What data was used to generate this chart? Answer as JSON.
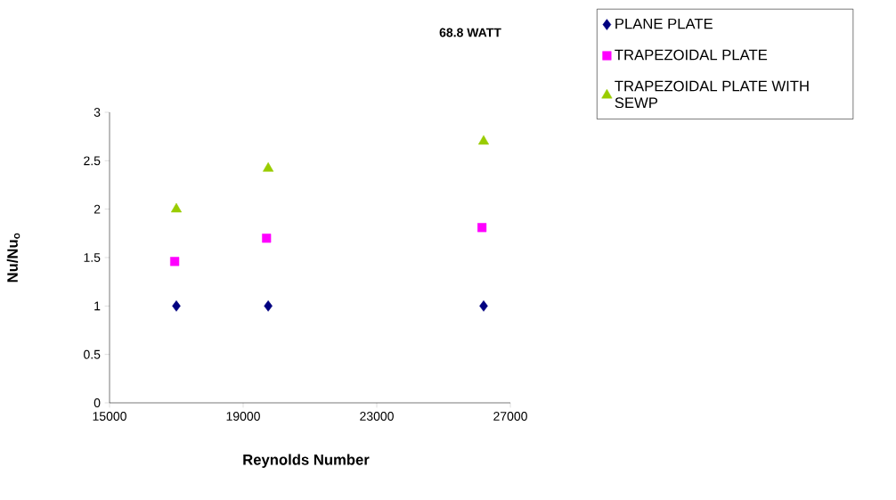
{
  "chart_data": {
    "type": "scatter",
    "title": "68.8 WATT",
    "xlabel": "Reynolds Number",
    "ylabel": "Nu/Nu$_{o}$",
    "xlim": [
      15000,
      27000
    ],
    "xticks": [
      15000,
      19000,
      23000,
      27000
    ],
    "ylim": [
      0,
      3
    ],
    "yticks": [
      0,
      0.5,
      1,
      1.5,
      2,
      2.5,
      3
    ],
    "legend": "top right",
    "series": [
      {
        "name": "PLANE PLATE",
        "color": "#000080",
        "marker": "diamond",
        "x": [
          17000,
          19750,
          26200
        ],
        "values": [
          1.0,
          1.0,
          1.0
        ]
      },
      {
        "name": "TRAPEZOIDAL PLATE",
        "color": "#ff00ff",
        "marker": "square",
        "x": [
          16950,
          19700,
          26150
        ],
        "values": [
          1.46,
          1.7,
          1.81
        ]
      },
      {
        "name": "TRAPEZOIDAL PLATE WITH SEWP",
        "color": "#99cc00",
        "marker": "triangle",
        "x": [
          17000,
          19750,
          26200
        ],
        "values": [
          2.0,
          2.42,
          2.7
        ]
      }
    ]
  }
}
